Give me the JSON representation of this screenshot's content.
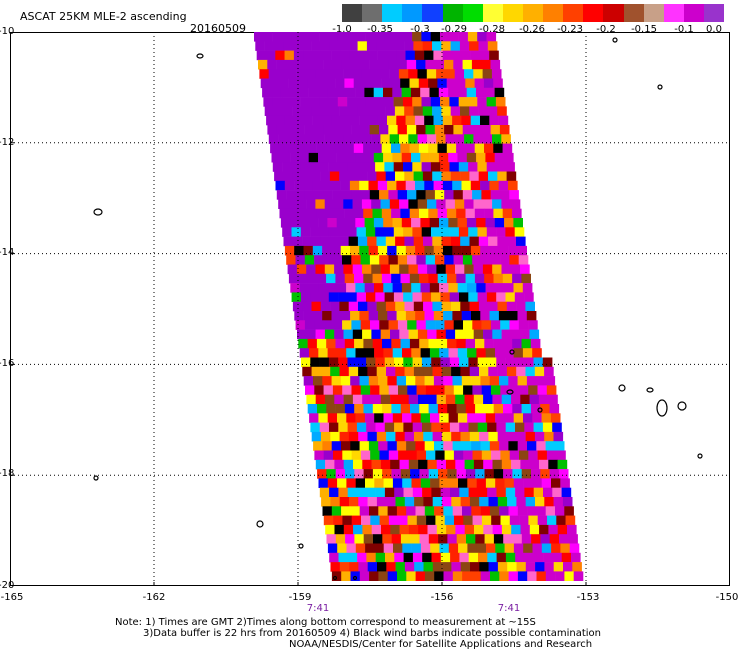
{
  "header": {
    "title": "ASCAT 25KM MLE-2 ascending",
    "date": "20160509"
  },
  "colorbar": {
    "colors": [
      "#404040",
      "#6e6e6e",
      "#00ccff",
      "#0099ff",
      "#1040ff",
      "#00b400",
      "#00dd00",
      "#ffff33",
      "#ffd700",
      "#ffb000",
      "#ff8000",
      "#ff4000",
      "#ff0000",
      "#cc0000",
      "#a0522d",
      "#c8a088",
      "#ff33ff",
      "#cc00cc",
      "#9933cc"
    ],
    "labels": [
      "-1.0",
      "-0.35",
      "-0.3",
      "-0.29",
      "-0.28",
      "-0.26",
      "-0.23",
      "-0.2",
      "-0.15",
      "-0.1",
      "0.0"
    ]
  },
  "axes": {
    "lat_labels": [
      "-10",
      "-12",
      "-14",
      "-16",
      "-18",
      "-20"
    ],
    "lon_labels": [
      "-165",
      "-162",
      "-159",
      "-156",
      "-153",
      "-150"
    ],
    "time_labels": [
      "7:41",
      "7:41"
    ]
  },
  "notes": {
    "line1": "Note: 1) Times are GMT 2)Times along bottom correspond to measurement at ~15S",
    "line2": "3)Data buffer is 22 hrs from 20160509 4) Black wind barbs indicate possible contamination",
    "line3": "NOAA/NESDIS/Center for Satellite Applications and Research"
  },
  "map": {
    "lat_range": [
      -20,
      -10
    ],
    "lon_range": [
      -165,
      -150
    ],
    "swath_palette": [
      "#9900cc",
      "#cc00cc",
      "#ff00ff",
      "#ff0000",
      "#ff0000",
      "#ff2200",
      "#ff4000",
      "#ff8000",
      "#ffb000",
      "#ffd700",
      "#ffff00",
      "#00c000",
      "#0000ff",
      "#00aaff",
      "#00ccff",
      "#800000",
      "#8b4513",
      "#000000",
      "#ff66cc"
    ]
  }
}
